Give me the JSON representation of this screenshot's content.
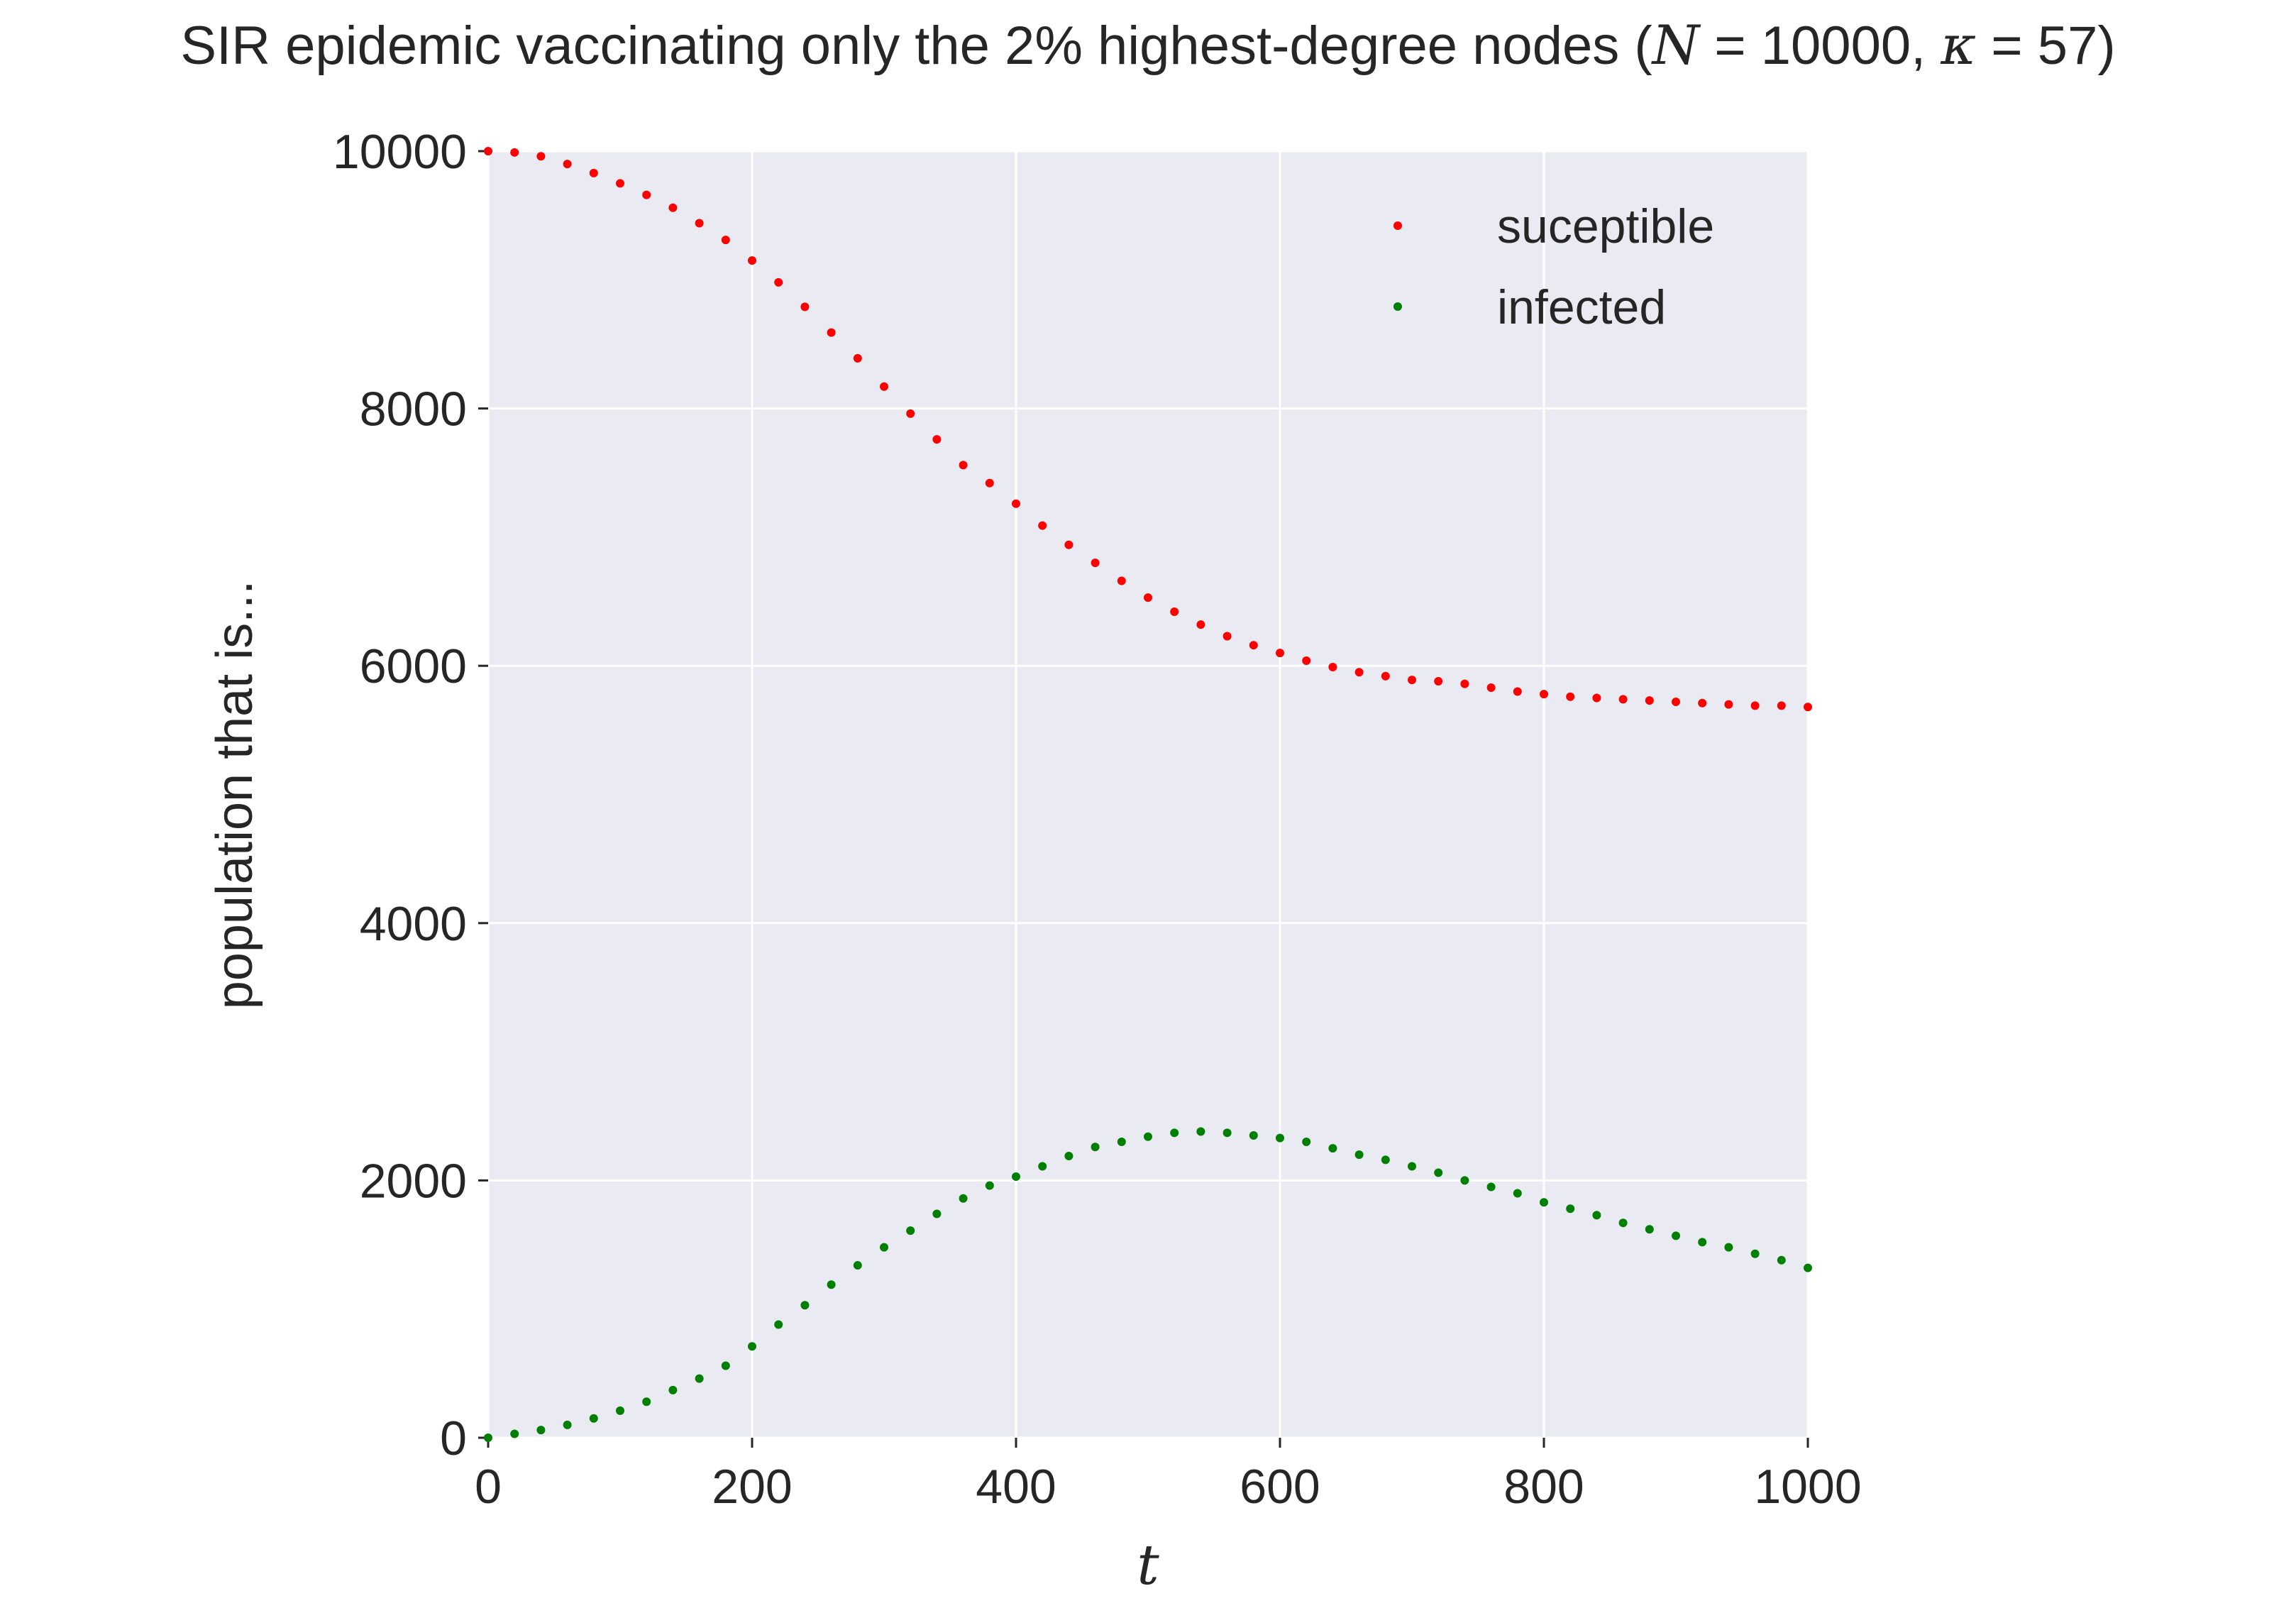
{
  "chart_data": {
    "type": "scatter",
    "title": {
      "prefix": "SIR epidemic vaccinating only the 2% highest-degree nodes (",
      "n_symbol": "N",
      "n_value": " = 10000, ",
      "k_symbol": "κ",
      "k_value": " = 57)"
    },
    "xlabel": "t",
    "ylabel": "population that is...",
    "xlim": [
      0,
      1000
    ],
    "ylim": [
      0,
      10000
    ],
    "xticks": [
      0,
      200,
      400,
      600,
      800,
      1000
    ],
    "yticks": [
      0,
      2000,
      4000,
      6000,
      8000,
      10000
    ],
    "grid": true,
    "legend_position": "top-right",
    "colors": {
      "background": "#eaeaf2",
      "grid": "#ffffff"
    },
    "x": [
      0,
      20,
      40,
      60,
      80,
      100,
      120,
      140,
      160,
      180,
      200,
      220,
      240,
      260,
      280,
      300,
      320,
      340,
      360,
      380,
      400,
      420,
      440,
      460,
      480,
      500,
      520,
      540,
      560,
      580,
      600,
      620,
      640,
      660,
      680,
      700,
      720,
      740,
      760,
      780,
      800,
      820,
      840,
      860,
      880,
      900,
      920,
      940,
      960,
      980,
      1000
    ],
    "series": [
      {
        "name": "suceptible",
        "color": "#ff0000",
        "values": [
          10000,
          9990,
          9960,
          9900,
          9830,
          9750,
          9660,
          9560,
          9440,
          9310,
          9150,
          8980,
          8790,
          8590,
          8390,
          8170,
          7960,
          7760,
          7560,
          7420,
          7260,
          7090,
          6940,
          6800,
          6660,
          6530,
          6420,
          6320,
          6230,
          6160,
          6100,
          6040,
          5990,
          5950,
          5920,
          5890,
          5880,
          5860,
          5830,
          5800,
          5780,
          5760,
          5750,
          5740,
          5730,
          5720,
          5710,
          5700,
          5690,
          5690,
          5680
        ]
      },
      {
        "name": "infected",
        "color": "#007f00",
        "values": [
          0,
          30,
          60,
          100,
          150,
          210,
          280,
          370,
          460,
          560,
          710,
          880,
          1030,
          1190,
          1340,
          1480,
          1610,
          1740,
          1860,
          1960,
          2030,
          2110,
          2190,
          2260,
          2300,
          2340,
          2370,
          2380,
          2370,
          2350,
          2330,
          2300,
          2250,
          2200,
          2160,
          2110,
          2060,
          2000,
          1950,
          1900,
          1830,
          1780,
          1730,
          1670,
          1620,
          1570,
          1520,
          1480,
          1430,
          1380,
          1320
        ]
      }
    ]
  }
}
